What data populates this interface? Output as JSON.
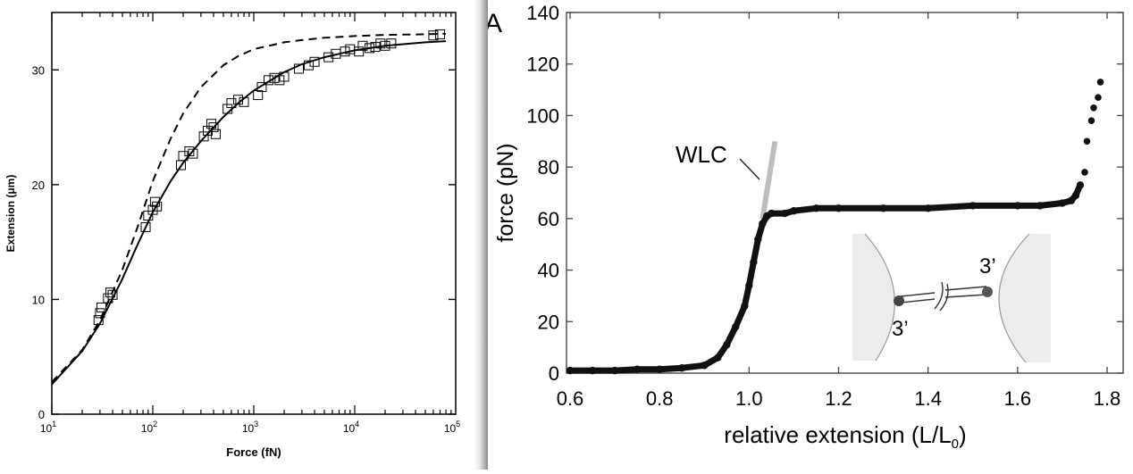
{
  "charts": {
    "left": {
      "xlabel": "Force (fN)",
      "ylabel": "Extension (μm)",
      "x_ticks": [
        {
          "base": "10",
          "exp": "1"
        },
        {
          "base": "10",
          "exp": "2"
        },
        {
          "base": "10",
          "exp": "3"
        },
        {
          "base": "10",
          "exp": "4"
        },
        {
          "base": "10",
          "exp": "5"
        }
      ],
      "y_ticks": [
        "0",
        "10",
        "20",
        "30"
      ]
    },
    "right": {
      "panel_letter": "A",
      "xlabel_main": "relative extension (L/L",
      "xlabel_sub": "0",
      "xlabel_end": ")",
      "ylabel": "force (pN)",
      "x_ticks": [
        "0.6",
        "0.8",
        "1.0",
        "1.2",
        "1.4",
        "1.6",
        "1.8"
      ],
      "y_ticks": [
        "0",
        "20",
        "40",
        "60",
        "80",
        "100",
        "120",
        "140"
      ],
      "wlc_label": "WLC",
      "inset_label_top": "3’",
      "inset_label_bottom": "3’"
    }
  },
  "chart_data": [
    {
      "type": "scatter",
      "x_scale": "log",
      "xlim": [
        10,
        100000
      ],
      "ylim": [
        0,
        35
      ],
      "xlabel": "Force (fN)",
      "ylabel": "Extension (μm)",
      "grid": false,
      "series": [
        {
          "style": "squares",
          "x": [
            29,
            30,
            31,
            36,
            38,
            40,
            85,
            90,
            100,
            105,
            110,
            190,
            200,
            230,
            250,
            320,
            350,
            380,
            400,
            420,
            550,
            600,
            700,
            800,
            1100,
            1200,
            1400,
            1600,
            1800,
            2000,
            2800,
            3500,
            4000,
            5500,
            6500,
            8000,
            9000,
            11000,
            12000,
            14000,
            16000,
            18000,
            20000,
            23000,
            60000,
            70000
          ],
          "y": [
            8.2,
            8.8,
            9.3,
            10.1,
            10.6,
            10.4,
            16.3,
            17.3,
            17.8,
            18.5,
            18.1,
            21.7,
            22.5,
            22.9,
            22.7,
            24.2,
            24.7,
            25.3,
            25.0,
            24.4,
            26.6,
            27.1,
            27.4,
            27.2,
            27.8,
            28.5,
            29.1,
            29.3,
            29.1,
            29.4,
            30.1,
            30.4,
            30.7,
            31.1,
            31.4,
            31.6,
            31.8,
            31.6,
            32.1,
            31.9,
            32.0,
            32.3,
            32.1,
            32.3,
            33.0,
            33.1
          ]
        },
        {
          "style": "solid-line",
          "x": [
            10,
            20,
            30,
            50,
            70,
            100,
            150,
            200,
            300,
            500,
            700,
            1000,
            2000,
            3000,
            5000,
            10000,
            20000,
            50000,
            80000
          ],
          "y": [
            2.6,
            5.5,
            7.9,
            11.8,
            14.7,
            17.6,
            20.3,
            21.9,
            23.8,
            25.9,
            27.1,
            28.2,
            29.8,
            30.5,
            31.1,
            31.7,
            32.1,
            32.4,
            32.5
          ]
        },
        {
          "style": "dashed-line",
          "x": [
            10,
            20,
            30,
            50,
            70,
            100,
            150,
            200,
            300,
            500,
            700,
            1000,
            2000,
            3000,
            5000,
            10000,
            20000,
            50000,
            80000
          ],
          "y": [
            2.8,
            5.6,
            8.2,
            12.6,
            16.2,
            20.3,
            24.0,
            26.2,
            28.5,
            30.4,
            31.2,
            31.8,
            32.4,
            32.6,
            32.8,
            32.95,
            33.05,
            33.1,
            33.15
          ]
        }
      ]
    },
    {
      "type": "scatter",
      "xlim": [
        0.6,
        1.85
      ],
      "ylim": [
        0,
        140
      ],
      "xlabel": "relative extension (L/L0)",
      "ylabel": "force (pN)",
      "grid": false,
      "series": [
        {
          "style": "dots",
          "x": [
            0.6,
            0.65,
            0.7,
            0.75,
            0.8,
            0.85,
            0.9,
            0.93,
            0.95,
            0.97,
            0.99,
            1.0,
            1.01,
            1.02,
            1.03,
            1.04,
            1.05,
            1.08,
            1.1,
            1.15,
            1.2,
            1.3,
            1.4,
            1.5,
            1.6,
            1.65,
            1.7,
            1.72,
            1.73,
            1.74,
            1.75,
            1.755,
            1.765,
            1.77,
            1.78,
            1.785
          ],
          "y": [
            1,
            1,
            1,
            1.5,
            1.5,
            2,
            3,
            6,
            11,
            18,
            26,
            34,
            43,
            52,
            58,
            61,
            62,
            62,
            63,
            64,
            64,
            64,
            64,
            65,
            65,
            65,
            66,
            67,
            69,
            73,
            78,
            90,
            98,
            103,
            107,
            113
          ]
        },
        {
          "name": "WLC",
          "style": "gray-line",
          "x": [
            1.03,
            1.058
          ],
          "y": [
            60,
            90
          ]
        }
      ]
    }
  ]
}
